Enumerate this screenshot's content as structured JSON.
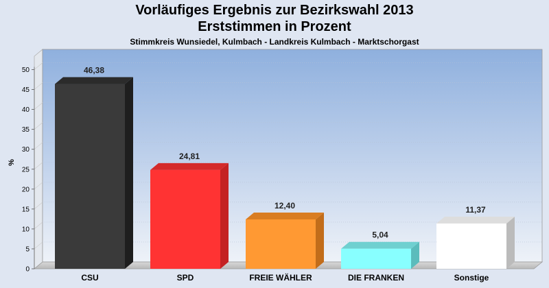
{
  "header": {
    "title": "Vorläufiges Ergebnis zur Bezirkswahl 2013",
    "subtitle": "Erststimmen in Prozent",
    "region": "Stimmkreis Wunsiedel, Kulmbach - Landkreis Kulmbach - Marktschorgast"
  },
  "chart_data": {
    "type": "bar",
    "title": "Vorläufiges Ergebnis zur Bezirkswahl 2013",
    "subtitle": "Erststimmen in Prozent",
    "ylabel": "%",
    "xlabel": "",
    "ylim": [
      0,
      50
    ],
    "yticks": [
      0,
      5,
      10,
      15,
      20,
      25,
      30,
      35,
      40,
      45,
      50
    ],
    "grid": true,
    "categories": [
      "CSU",
      "SPD",
      "FREIE WÄHLER",
      "DIE FRANKEN",
      "Sonstige"
    ],
    "values": [
      46.38,
      24.81,
      12.4,
      5.04,
      11.37
    ],
    "value_labels": [
      "46,38",
      "24,81",
      "12,40",
      "5,04",
      "11,37"
    ],
    "colors": [
      "#3a3a3a",
      "#ff3333",
      "#ff9933",
      "#88ffff",
      "#ffffff"
    ],
    "side_colors": [
      "#1e1e1e",
      "#c42222",
      "#c26d1a",
      "#5bbcbc",
      "#bbbbbb"
    ],
    "top_colors": [
      "#2b2b2b",
      "#d42a2a",
      "#d97d22",
      "#6fd0d0",
      "#dddddd"
    ]
  }
}
